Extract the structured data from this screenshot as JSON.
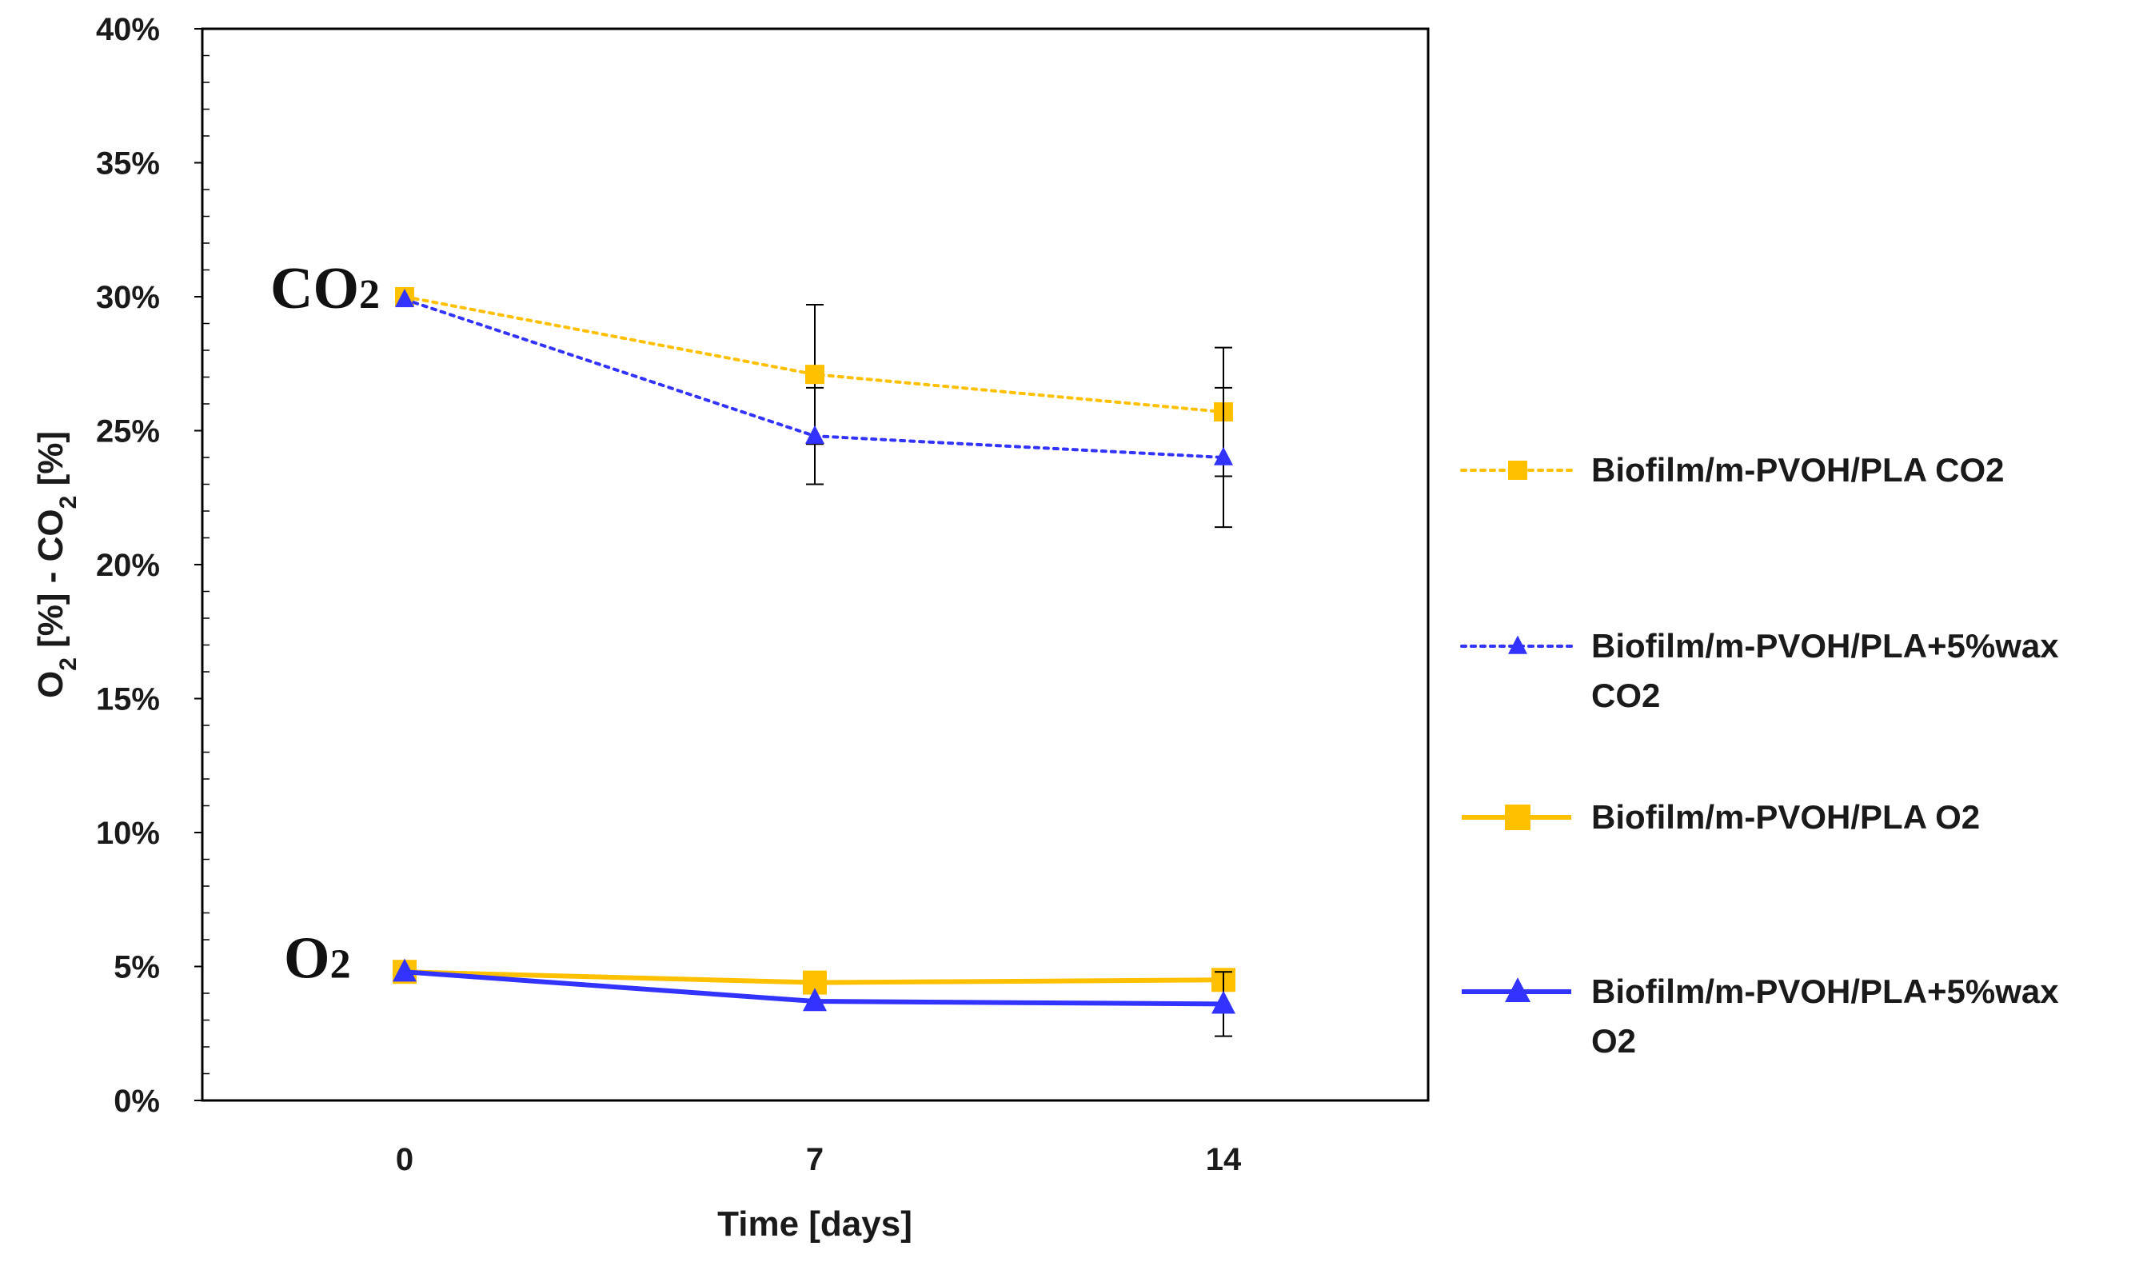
{
  "chart_data": {
    "type": "line",
    "xlabel": "Time [days]",
    "ylabel_parts": [
      "O",
      "2",
      " [%] - CO",
      "2",
      " [%]"
    ],
    "categories": [
      "0",
      "7",
      "14"
    ],
    "ylim": [
      0,
      40
    ],
    "yticks": [
      0,
      5,
      10,
      15,
      20,
      25,
      30,
      35,
      40
    ],
    "ytick_labels": [
      "0%",
      "5%",
      "10%",
      "15%",
      "20%",
      "25%",
      "30%",
      "35%",
      "40%"
    ],
    "grid": false,
    "legend_position": "right",
    "series": [
      {
        "name_lines": [
          "Biofilm/m-PVOH/PLA CO2"
        ],
        "values": [
          30.0,
          27.1,
          25.7
        ],
        "errors": [
          0,
          2.6,
          2.4
        ],
        "color": "#FFC000",
        "line_style": "dotted",
        "marker": "square"
      },
      {
        "name_lines": [
          "Biofilm/m-PVOH/PLA+5%wax",
          "CO2"
        ],
        "values": [
          29.9,
          24.8,
          24.0
        ],
        "errors": [
          0,
          1.8,
          2.6
        ],
        "color": "#3333FF",
        "line_style": "dotted",
        "marker": "triangle"
      },
      {
        "name_lines": [
          "Biofilm/m-PVOH/PLA O2"
        ],
        "values": [
          4.8,
          4.4,
          4.5
        ],
        "errors": [
          0,
          0,
          0
        ],
        "color": "#FFC000",
        "line_style": "solid",
        "marker": "square"
      },
      {
        "name_lines": [
          "Biofilm/m-PVOH/PLA+5%wax",
          "O2"
        ],
        "values": [
          4.8,
          3.7,
          3.6
        ],
        "errors": [
          0,
          0,
          1.2
        ],
        "color": "#3333FF",
        "line_style": "solid",
        "marker": "triangle"
      }
    ],
    "annotations": [
      {
        "main": "CO",
        "sub": "2",
        "y": 30.0
      },
      {
        "main": "O",
        "sub": "2",
        "y": 5.0
      }
    ]
  }
}
